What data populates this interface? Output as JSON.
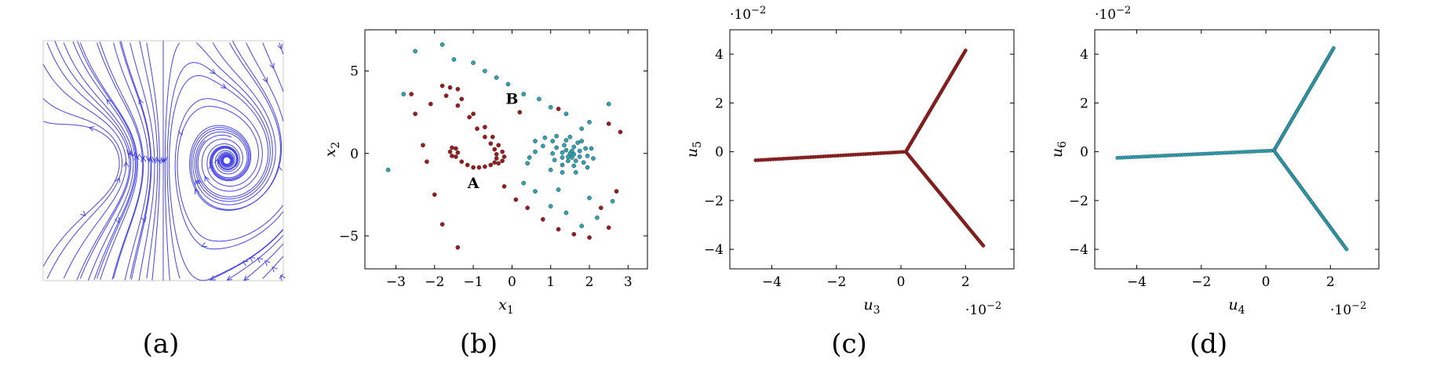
{
  "panels": [
    {
      "caption": "(a)"
    },
    {
      "caption": "(b)"
    },
    {
      "caption": "(c)"
    },
    {
      "caption": "(d)"
    }
  ],
  "chart_data": [
    {
      "type": "streamplot",
      "title": "",
      "xlabel": "",
      "ylabel": "",
      "xlim": [
        -3,
        3
      ],
      "ylim": [
        -3,
        3
      ],
      "color": "#4444ee",
      "fixed_points": [
        [
          -1.6,
          0.0
        ],
        [
          0.0,
          0.0
        ],
        [
          1.6,
          0.0
        ]
      ],
      "grid": false
    },
    {
      "type": "scatter",
      "title": "",
      "xlabel": "x_1",
      "ylabel": "x_2",
      "xlim": [
        -3.8,
        3.5
      ],
      "ylim": [
        -7.0,
        7.5
      ],
      "xticks": [
        -3,
        -2,
        -1,
        0,
        1,
        2,
        3
      ],
      "yticks": [
        -5,
        0,
        5
      ],
      "annotations": [
        {
          "text": "A",
          "x": -1.0,
          "y": -2.1
        },
        {
          "text": "B",
          "x": 0.0,
          "y": 3.0
        }
      ],
      "series": [
        {
          "color": "#9b1b1b",
          "points": [
            [
              -1.6,
              0.1
            ],
            [
              -1.55,
              0.35
            ],
            [
              -1.45,
              0.3
            ],
            [
              -1.4,
              0.05
            ],
            [
              -1.45,
              -0.2
            ],
            [
              -1.55,
              -0.15
            ],
            [
              -1.3,
              -0.5
            ],
            [
              -1.15,
              -0.7
            ],
            [
              -1.0,
              -0.85
            ],
            [
              -0.85,
              -0.85
            ],
            [
              -0.7,
              -0.8
            ],
            [
              -0.55,
              -0.7
            ],
            [
              -0.45,
              -0.55
            ],
            [
              -0.4,
              -0.3
            ],
            [
              -0.4,
              -0.05
            ],
            [
              -0.45,
              0.25
            ],
            [
              -0.55,
              0.6
            ],
            [
              -0.7,
              1.0
            ],
            [
              -0.9,
              1.5
            ],
            [
              -1.1,
              2.2
            ],
            [
              -1.4,
              2.9
            ],
            [
              -1.7,
              3.5
            ],
            [
              -0.35,
              -0.6
            ],
            [
              -0.25,
              -0.45
            ],
            [
              -0.2,
              -0.2
            ],
            [
              -0.25,
              0.1
            ],
            [
              -0.35,
              0.5
            ],
            [
              -0.5,
              1.0
            ],
            [
              -0.7,
              1.6
            ],
            [
              -1.0,
              2.4
            ],
            [
              -1.3,
              3.3
            ],
            [
              -1.6,
              4.0
            ],
            [
              -2.6,
              3.6
            ],
            [
              -2.5,
              2.4
            ],
            [
              -2.1,
              3.0
            ],
            [
              -1.8,
              4.1
            ],
            [
              -1.4,
              3.9
            ],
            [
              -2.3,
              0.5
            ],
            [
              -2.2,
              -0.5
            ],
            [
              -2.0,
              -2.5
            ],
            [
              -1.8,
              -4.3
            ],
            [
              -1.4,
              -5.7
            ],
            [
              -0.2,
              -2.0
            ],
            [
              0.1,
              -2.8
            ],
            [
              0.4,
              -3.3
            ],
            [
              0.8,
              -4.0
            ],
            [
              1.2,
              -4.6
            ],
            [
              1.6,
              -4.9
            ],
            [
              2.0,
              -5.1
            ],
            [
              2.5,
              -4.5
            ],
            [
              2.3,
              -3.3
            ],
            [
              2.7,
              -2.3
            ],
            [
              2.8,
              1.3
            ],
            [
              2.5,
              1.8
            ],
            [
              0.2,
              2.5
            ],
            [
              1.2,
              2.7
            ]
          ]
        },
        {
          "color": "#2aa6b8",
          "points": [
            [
              1.5,
              0.0
            ],
            [
              1.45,
              -0.2
            ],
            [
              1.55,
              -0.25
            ],
            [
              1.6,
              -0.05
            ],
            [
              1.55,
              0.15
            ],
            [
              1.4,
              0.2
            ],
            [
              1.3,
              0.05
            ],
            [
              1.3,
              -0.25
            ],
            [
              1.45,
              -0.45
            ],
            [
              1.65,
              -0.45
            ],
            [
              1.75,
              -0.2
            ],
            [
              1.75,
              0.15
            ],
            [
              1.6,
              0.4
            ],
            [
              1.35,
              0.5
            ],
            [
              1.15,
              0.35
            ],
            [
              1.05,
              0.0
            ],
            [
              1.1,
              -0.4
            ],
            [
              1.3,
              -0.7
            ],
            [
              1.6,
              -0.75
            ],
            [
              1.85,
              -0.55
            ],
            [
              1.95,
              -0.15
            ],
            [
              1.9,
              0.3
            ],
            [
              1.7,
              0.65
            ],
            [
              1.4,
              0.8
            ],
            [
              1.05,
              0.75
            ],
            [
              0.8,
              0.45
            ],
            [
              0.6,
              0.1
            ],
            [
              0.45,
              -0.25
            ],
            [
              0.4,
              -0.6
            ],
            [
              0.6,
              0.75
            ],
            [
              0.85,
              0.95
            ],
            [
              1.15,
              1.05
            ],
            [
              1.5,
              1.0
            ],
            [
              1.8,
              0.75
            ],
            [
              2.05,
              0.3
            ],
            [
              2.1,
              -0.3
            ],
            [
              1.95,
              -0.85
            ],
            [
              1.65,
              -1.15
            ],
            [
              1.3,
              -1.15
            ],
            [
              1.0,
              -1.0
            ],
            [
              -2.5,
              6.2
            ],
            [
              -1.8,
              6.6
            ],
            [
              -1.5,
              5.7
            ],
            [
              -1.0,
              5.5
            ],
            [
              -0.7,
              5.0
            ],
            [
              -0.4,
              4.6
            ],
            [
              -0.1,
              4.2
            ],
            [
              0.3,
              3.6
            ],
            [
              0.7,
              3.3
            ],
            [
              1.0,
              2.8
            ],
            [
              1.4,
              2.4
            ],
            [
              1.8,
              1.5
            ],
            [
              2.0,
              1.9
            ],
            [
              2.5,
              3.0
            ],
            [
              2.6,
              -2.9
            ],
            [
              2.2,
              -3.9
            ],
            [
              1.8,
              -4.4
            ],
            [
              1.4,
              -3.6
            ],
            [
              1.0,
              -3.2
            ],
            [
              0.6,
              -2.3
            ],
            [
              0.3,
              -1.8
            ],
            [
              -3.2,
              -1.0
            ],
            [
              -2.8,
              3.6
            ],
            [
              1.2,
              -2.2
            ],
            [
              2.0,
              -2.7
            ]
          ]
        }
      ]
    },
    {
      "type": "scatter",
      "title": "",
      "xlabel": "u_3",
      "ylabel": "u_5",
      "x_scale_label": "·10^-2",
      "y_scale_label": "·10^-2",
      "xlim": [
        -5.3,
        3.5
      ],
      "ylim": [
        -4.8,
        5.0
      ],
      "xticks": [
        -4,
        -2,
        0,
        2
      ],
      "yticks": [
        -4,
        -2,
        0,
        2,
        4
      ],
      "series": [
        {
          "color": "#9b1b1b",
          "arms": [
            {
              "from": [
                0.15,
                0.0
              ],
              "to": [
                -4.5,
                -0.35
              ]
            },
            {
              "from": [
                0.15,
                0.0
              ],
              "to": [
                2.0,
                4.15
              ]
            },
            {
              "from": [
                0.15,
                0.0
              ],
              "to": [
                2.55,
                -3.85
              ]
            }
          ]
        }
      ]
    },
    {
      "type": "scatter",
      "title": "",
      "xlabel": "u_4",
      "ylabel": "u_6",
      "x_scale_label": "·10^-2",
      "y_scale_label": "·10^-2",
      "xlim": [
        -5.3,
        3.5
      ],
      "ylim": [
        -4.8,
        5.0
      ],
      "xticks": [
        -4,
        -2,
        0,
        2
      ],
      "yticks": [
        -4,
        -2,
        0,
        2,
        4
      ],
      "series": [
        {
          "color": "#2aa6b8",
          "arms": [
            {
              "from": [
                0.25,
                0.05
              ],
              "to": [
                -4.6,
                -0.25
              ]
            },
            {
              "from": [
                0.25,
                0.05
              ],
              "to": [
                2.1,
                4.25
              ]
            },
            {
              "from": [
                0.25,
                0.05
              ],
              "to": [
                2.5,
                -4.0
              ]
            }
          ]
        }
      ]
    }
  ]
}
